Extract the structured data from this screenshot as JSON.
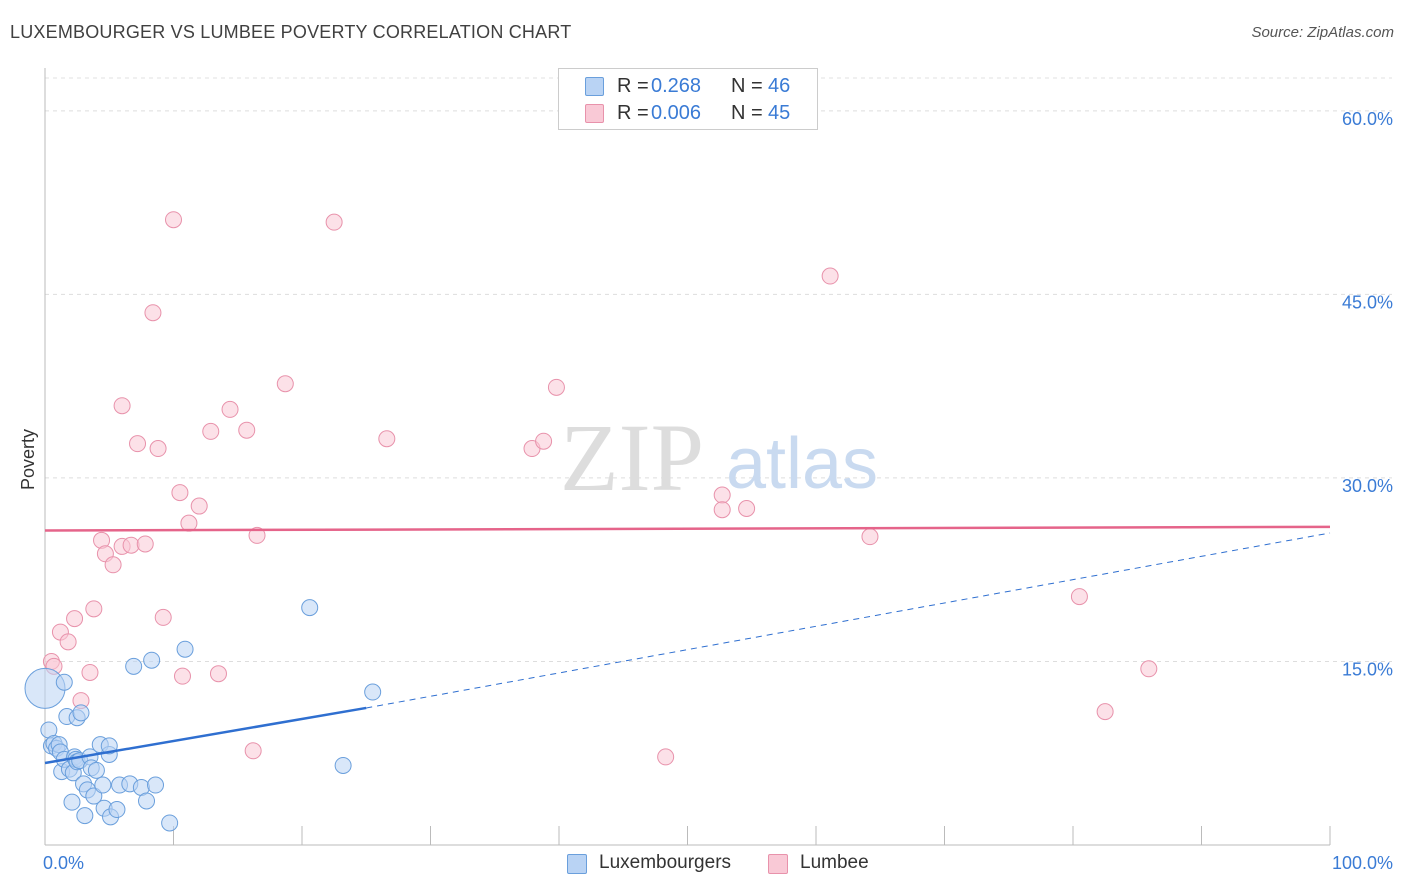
{
  "title": "LUXEMBOURGER VS LUMBEE POVERTY CORRELATION CHART",
  "source": "Source: ZipAtlas.com",
  "watermark": {
    "zip": "ZIP",
    "atlas": "atlas"
  },
  "legend": {
    "r_label": "R =",
    "n_label": "N =",
    "series": [
      {
        "r": "0.268",
        "n": "46"
      },
      {
        "r": "0.006",
        "n": "45"
      }
    ]
  },
  "chart_data": {
    "type": "scatter",
    "title": "LUXEMBOURGER VS LUMBEE POVERTY CORRELATION CHART",
    "xlabel": "",
    "ylabel": "Poverty",
    "xlim": [
      0,
      100
    ],
    "ylim": [
      0,
      65
    ],
    "x_tick_labels": [
      {
        "value": 0,
        "label": "0.0%"
      },
      {
        "value": 100,
        "label": "100.0%"
      }
    ],
    "y_ticks": [
      {
        "value": 15,
        "label": "15.0%"
      },
      {
        "value": 30,
        "label": "30.0%"
      },
      {
        "value": 45,
        "label": "45.0%"
      },
      {
        "value": 60,
        "label": "60.0%"
      }
    ],
    "grid": "horizontal dashed",
    "colors": {
      "luxembourgers_fill": "#b9d3f4",
      "luxembourgers_stroke": "#6a9fdc",
      "luxembourgers_line": "#2f6fd0",
      "lumbee_fill": "#f9c9d6",
      "lumbee_stroke": "#e892ab",
      "lumbee_line": "#e5648a",
      "tick_label": "#3a7bd5"
    },
    "series": [
      {
        "name": "Luxembourgers",
        "r": 0.268,
        "n": 46,
        "trend": {
          "x0": 0,
          "y0": 6.7,
          "x1": 25,
          "y1": 11.2,
          "dashed_to_x": 100,
          "dashed_to_y": 25.5
        },
        "points": [
          [
            0,
            12.8
          ],
          [
            0.3,
            9.4
          ],
          [
            0.5,
            8.1
          ],
          [
            0.7,
            8.3
          ],
          [
            0.9,
            7.9
          ],
          [
            1.1,
            8.2
          ],
          [
            1.2,
            7.6
          ],
          [
            1.3,
            6.0
          ],
          [
            1.5,
            7.0
          ],
          [
            1.5,
            13.3
          ],
          [
            1.7,
            10.5
          ],
          [
            1.9,
            6.2
          ],
          [
            2.1,
            3.5
          ],
          [
            2.2,
            5.9
          ],
          [
            2.3,
            7.2
          ],
          [
            2.4,
            7.0
          ],
          [
            2.5,
            6.8
          ],
          [
            2.5,
            10.4
          ],
          [
            2.7,
            6.9
          ],
          [
            2.8,
            10.8
          ],
          [
            3.0,
            5.0
          ],
          [
            3.1,
            2.4
          ],
          [
            3.3,
            4.5
          ],
          [
            3.5,
            7.2
          ],
          [
            3.6,
            6.3
          ],
          [
            3.8,
            4.0
          ],
          [
            4.0,
            6.1
          ],
          [
            4.3,
            8.2
          ],
          [
            4.5,
            4.9
          ],
          [
            4.6,
            3.0
          ],
          [
            5.0,
            7.4
          ],
          [
            5.0,
            8.1
          ],
          [
            5.1,
            2.3
          ],
          [
            5.6,
            2.9
          ],
          [
            5.8,
            4.9
          ],
          [
            6.6,
            5.0
          ],
          [
            6.9,
            14.6
          ],
          [
            7.5,
            4.7
          ],
          [
            7.9,
            3.6
          ],
          [
            8.3,
            15.1
          ],
          [
            8.6,
            4.9
          ],
          [
            9.7,
            1.8
          ],
          [
            10.9,
            16.0
          ],
          [
            20.6,
            19.4
          ],
          [
            23.2,
            6.5
          ],
          [
            25.5,
            12.5
          ]
        ]
      },
      {
        "name": "Lumbee",
        "r": 0.006,
        "n": 45,
        "trend": {
          "x0": 0,
          "y0": 25.7,
          "x1": 100,
          "y1": 26.0
        },
        "points": [
          [
            0.5,
            15.0
          ],
          [
            0.7,
            14.6
          ],
          [
            1.2,
            17.4
          ],
          [
            1.8,
            16.6
          ],
          [
            2.3,
            18.5
          ],
          [
            2.8,
            11.8
          ],
          [
            3.5,
            14.1
          ],
          [
            3.8,
            19.3
          ],
          [
            4.4,
            24.9
          ],
          [
            4.7,
            23.8
          ],
          [
            5.3,
            22.9
          ],
          [
            6.0,
            24.4
          ],
          [
            6.0,
            35.9
          ],
          [
            6.7,
            24.5
          ],
          [
            7.2,
            32.8
          ],
          [
            7.8,
            24.6
          ],
          [
            8.4,
            43.5
          ],
          [
            8.8,
            32.4
          ],
          [
            9.2,
            18.6
          ],
          [
            10.0,
            51.1
          ],
          [
            10.5,
            28.8
          ],
          [
            10.7,
            13.8
          ],
          [
            11.2,
            26.3
          ],
          [
            12.0,
            27.7
          ],
          [
            12.9,
            33.8
          ],
          [
            13.5,
            14.0
          ],
          [
            14.4,
            35.6
          ],
          [
            15.7,
            33.9
          ],
          [
            16.2,
            7.7
          ],
          [
            16.5,
            25.3
          ],
          [
            18.7,
            37.7
          ],
          [
            22.5,
            50.9
          ],
          [
            26.6,
            33.2
          ],
          [
            37.9,
            32.4
          ],
          [
            38.8,
            33.0
          ],
          [
            39.8,
            37.4
          ],
          [
            48.3,
            7.2
          ],
          [
            52.7,
            28.6
          ],
          [
            52.7,
            27.4
          ],
          [
            54.6,
            27.5
          ],
          [
            61.1,
            46.5
          ],
          [
            64.2,
            25.2
          ],
          [
            80.5,
            20.3
          ],
          [
            82.5,
            10.9
          ],
          [
            85.9,
            14.4
          ]
        ]
      }
    ]
  }
}
